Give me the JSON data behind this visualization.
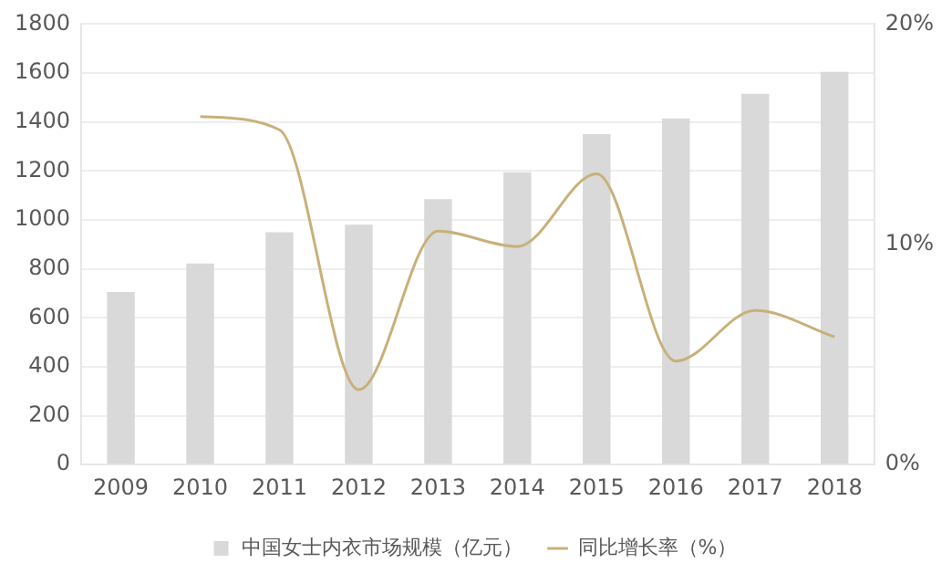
{
  "chart_data": {
    "type": "bar",
    "categories": [
      "2009",
      "2010",
      "2011",
      "2012",
      "2013",
      "2014",
      "2015",
      "2016",
      "2017",
      "2018"
    ],
    "series": [
      {
        "name": "中国女士内衣市场规模（亿元）",
        "color": "#d9d9d9",
        "values": [
          705,
          822,
          950,
          980,
          1085,
          1195,
          1350,
          1415,
          1515,
          1605
        ]
      },
      {
        "name": "同比增长率（%）",
        "type": "line",
        "axis": "y2",
        "color": "#c9b07a",
        "values": [
          null,
          15.8,
          15.2,
          3.4,
          10.6,
          9.9,
          13.2,
          4.7,
          7.0,
          5.8
        ]
      }
    ],
    "ylim": [
      0,
      1800
    ],
    "yticks": [
      0,
      200,
      400,
      600,
      800,
      1000,
      1200,
      1400,
      1600,
      1800
    ],
    "y2lim": [
      0,
      20
    ],
    "y2ticks": [
      {
        "value": 0,
        "label": "0%"
      },
      {
        "value": 10,
        "label": "10%"
      },
      {
        "value": 20,
        "label": "20%"
      }
    ],
    "grid": "y",
    "legend": "bottom",
    "marker": "none",
    "line_style": "solid"
  }
}
